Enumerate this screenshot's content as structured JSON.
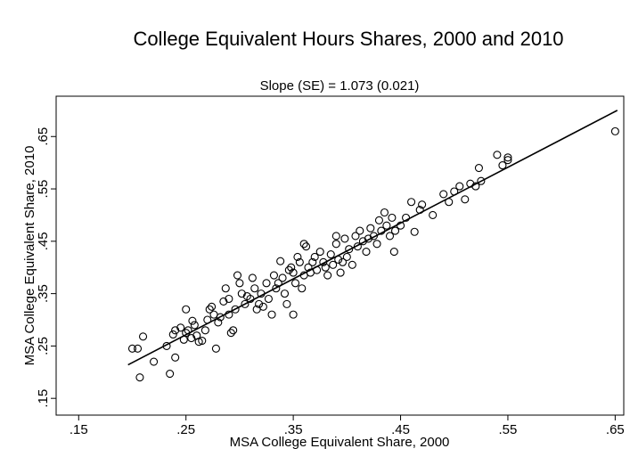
{
  "chart_data": {
    "type": "scatter",
    "title": "College Equivalent Hours Shares, 2000 and 2010",
    "subtitle": "Slope (SE) = 1.073 (0.021)",
    "x_label": "MSA College Equivalent Share, 2000",
    "y_label": "MSA College Equivalent Share, 2010",
    "color": "#000000",
    "xlim": [
      0.129,
      0.658
    ],
    "ylim": [
      0.118,
      0.727
    ],
    "xticks": [
      {
        "value": 0.15,
        "label": ".15"
      },
      {
        "value": 0.25,
        "label": ".25"
      },
      {
        "value": 0.35,
        "label": ".35"
      },
      {
        "value": 0.45,
        "label": ".45"
      },
      {
        "value": 0.55,
        "label": ".55"
      },
      {
        "value": 0.65,
        "label": ".65"
      }
    ],
    "yticks": [
      {
        "value": 0.15,
        "label": ".15"
      },
      {
        "value": 0.25,
        "label": ".25"
      },
      {
        "value": 0.35,
        "label": ".35"
      },
      {
        "value": 0.45,
        "label": ".45"
      },
      {
        "value": 0.55,
        "label": ".55"
      },
      {
        "value": 0.65,
        "label": ".65"
      }
    ],
    "grid": false,
    "x": [
      0.65,
      0.207,
      0.235,
      0.21,
      0.278,
      0.444,
      0.463,
      0.54,
      0.55,
      0.55,
      0.523,
      0.2,
      0.205,
      0.22,
      0.232,
      0.24,
      0.25,
      0.35,
      0.36,
      0.238,
      0.24,
      0.245,
      0.248,
      0.25,
      0.252,
      0.255,
      0.256,
      0.258,
      0.26,
      0.262,
      0.265,
      0.268,
      0.27,
      0.272,
      0.274,
      0.276,
      0.28,
      0.282,
      0.285,
      0.287,
      0.29,
      0.29,
      0.292,
      0.294,
      0.296,
      0.298,
      0.3,
      0.302,
      0.305,
      0.307,
      0.31,
      0.312,
      0.314,
      0.316,
      0.318,
      0.32,
      0.322,
      0.325,
      0.327,
      0.33,
      0.332,
      0.334,
      0.336,
      0.338,
      0.34,
      0.342,
      0.344,
      0.346,
      0.348,
      0.35,
      0.352,
      0.354,
      0.356,
      0.358,
      0.36,
      0.362,
      0.364,
      0.366,
      0.368,
      0.37,
      0.372,
      0.375,
      0.378,
      0.38,
      0.382,
      0.385,
      0.387,
      0.39,
      0.39,
      0.392,
      0.394,
      0.396,
      0.398,
      0.4,
      0.402,
      0.405,
      0.408,
      0.41,
      0.412,
      0.415,
      0.418,
      0.42,
      0.422,
      0.425,
      0.428,
      0.43,
      0.432,
      0.435,
      0.437,
      0.44,
      0.442,
      0.445,
      0.45,
      0.455,
      0.46,
      0.468,
      0.47,
      0.48,
      0.49,
      0.495,
      0.5,
      0.505,
      0.51,
      0.515,
      0.52,
      0.525,
      0.545
    ],
    "values": [
      0.66,
      0.19,
      0.197,
      0.268,
      0.245,
      0.43,
      0.468,
      0.615,
      0.61,
      0.605,
      0.59,
      0.245,
      0.245,
      0.22,
      0.25,
      0.228,
      0.32,
      0.31,
      0.445,
      0.272,
      0.28,
      0.285,
      0.262,
      0.275,
      0.28,
      0.265,
      0.298,
      0.29,
      0.27,
      0.258,
      0.26,
      0.28,
      0.3,
      0.32,
      0.325,
      0.31,
      0.295,
      0.305,
      0.335,
      0.36,
      0.34,
      0.31,
      0.275,
      0.28,
      0.32,
      0.385,
      0.37,
      0.35,
      0.33,
      0.345,
      0.34,
      0.38,
      0.36,
      0.32,
      0.33,
      0.35,
      0.325,
      0.37,
      0.34,
      0.31,
      0.385,
      0.36,
      0.37,
      0.412,
      0.38,
      0.35,
      0.33,
      0.395,
      0.4,
      0.39,
      0.37,
      0.42,
      0.41,
      0.36,
      0.385,
      0.44,
      0.4,
      0.39,
      0.41,
      0.42,
      0.395,
      0.43,
      0.41,
      0.4,
      0.385,
      0.425,
      0.405,
      0.46,
      0.445,
      0.415,
      0.39,
      0.41,
      0.455,
      0.42,
      0.435,
      0.405,
      0.46,
      0.44,
      0.47,
      0.45,
      0.43,
      0.455,
      0.475,
      0.46,
      0.445,
      0.49,
      0.47,
      0.505,
      0.48,
      0.46,
      0.495,
      0.47,
      0.48,
      0.495,
      0.525,
      0.51,
      0.52,
      0.5,
      0.54,
      0.525,
      0.545,
      0.555,
      0.53,
      0.56,
      0.555,
      0.565,
      0.595
    ],
    "fit_line": {
      "x": [
        0.196,
        0.652
      ],
      "values": [
        0.214,
        0.7
      ]
    }
  }
}
